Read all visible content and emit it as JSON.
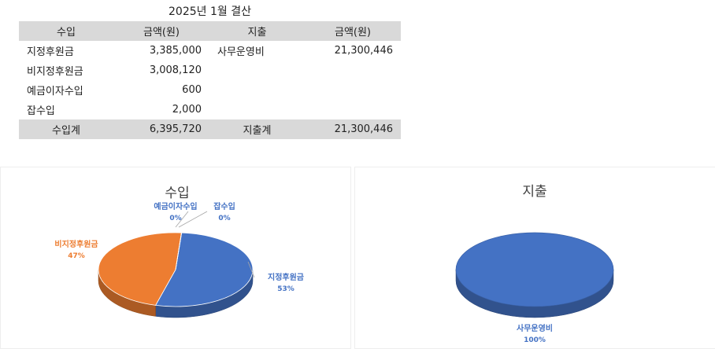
{
  "sheet": {
    "title": "2025년 1월 결산",
    "headers": [
      "수입",
      "금액(원)",
      "지출",
      "금액(원)"
    ],
    "rows": [
      [
        "지정후원금",
        "3,385,000",
        "사무운영비",
        "21,300,446"
      ],
      [
        "비지정후원금",
        "3,008,120",
        "",
        ""
      ],
      [
        "예금이자수입",
        "600",
        "",
        ""
      ],
      [
        "잡수입",
        "2,000",
        "",
        ""
      ]
    ],
    "totals": [
      "수입계",
      "6,395,720",
      "지출계",
      "21,300,446"
    ]
  },
  "chart_data": [
    {
      "type": "pie",
      "title": "수입",
      "labels": [
        "지정후원금",
        "비지정후원금",
        "예금이자수입",
        "잡수입"
      ],
      "values": [
        3385000,
        3008120,
        600,
        2000
      ],
      "percent_labels": [
        "53%",
        "47%",
        "0%",
        "0%"
      ],
      "colors": [
        "#4472c4",
        "#ed7d31",
        "#a5a5a5",
        "#ffc000"
      ]
    },
    {
      "type": "pie",
      "title": "지출",
      "labels": [
        "사무운영비"
      ],
      "values": [
        21300446
      ],
      "percent_labels": [
        "100%"
      ],
      "colors": [
        "#4472c4"
      ]
    }
  ]
}
